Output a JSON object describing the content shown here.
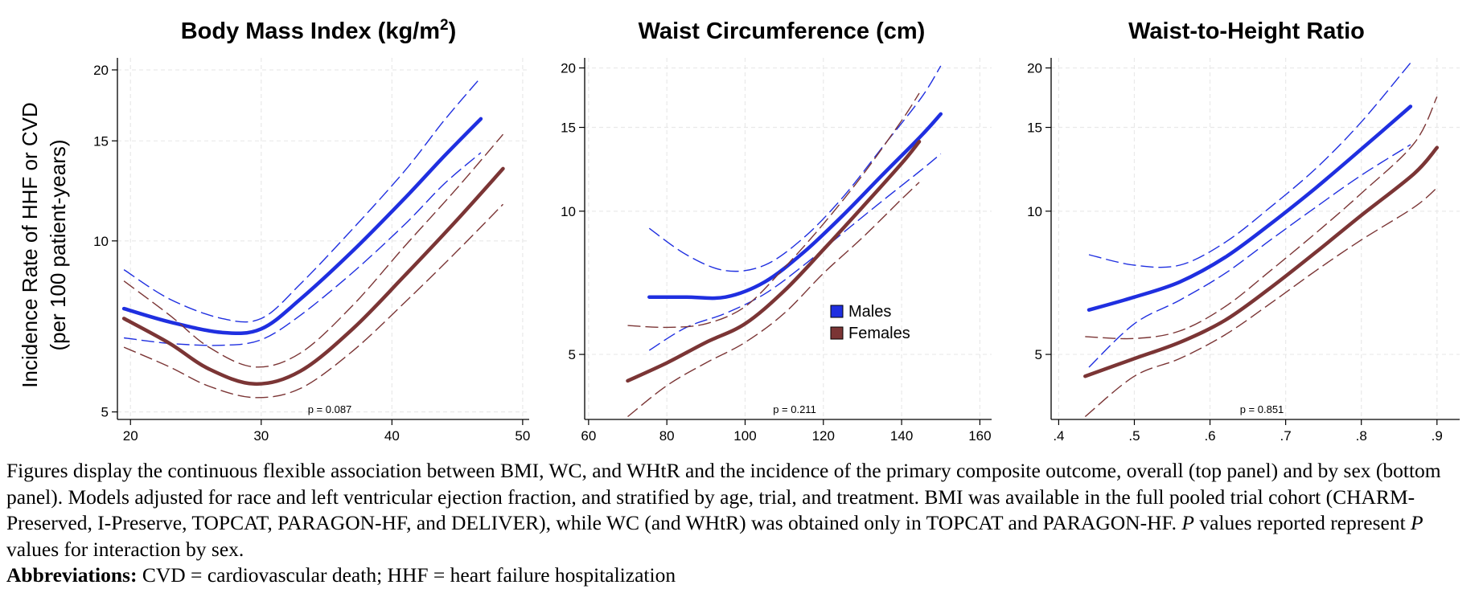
{
  "y_axis_label": [
    "Incidence Rate of HHF or CVD",
    "(per 100 patient-years)"
  ],
  "legend": [
    {
      "name": "Males",
      "color": "#1f2fe0"
    },
    {
      "name": "Females",
      "color": "#7b3535"
    }
  ],
  "chart_data": [
    {
      "type": "line",
      "title": "Body Mass Index (kg/m2)",
      "title_main": "Body Mass Index (kg/m",
      "title_sup": "2",
      "title_end": ")",
      "x_ticks": [
        "20",
        "30",
        "40",
        "50"
      ],
      "x_tick_values": [
        20,
        30,
        40,
        50
      ],
      "xlim": [
        19,
        50.5
      ],
      "y_scale": "log",
      "ylim": [
        4.85,
        21
      ],
      "y_ticks": [
        "5",
        "10",
        "15",
        "20"
      ],
      "y_tick_values": [
        5,
        10,
        15,
        20
      ],
      "p_value": "p = 0.087",
      "series": [
        {
          "name": "Males",
          "x": [
            19.5,
            23,
            27,
            30,
            33,
            37,
            41,
            44,
            46.8
          ],
          "y": [
            7.6,
            7.2,
            6.9,
            7.0,
            7.9,
            9.6,
            11.9,
            14.1,
            16.4
          ],
          "lower": [
            6.75,
            6.6,
            6.55,
            6.7,
            7.4,
            8.8,
            10.7,
            12.6,
            14.3
          ],
          "upper": [
            8.9,
            7.9,
            7.3,
            7.3,
            8.4,
            10.5,
            13.3,
            16.3,
            19.4
          ]
        },
        {
          "name": "Females",
          "x": [
            19.5,
            23,
            26,
            29.5,
            33,
            37,
            41,
            45,
            48.5
          ],
          "y": [
            7.3,
            6.6,
            5.95,
            5.6,
            5.9,
            7.0,
            8.7,
            10.9,
            13.4
          ],
          "lower": [
            6.5,
            6.0,
            5.55,
            5.3,
            5.5,
            6.4,
            7.8,
            9.6,
            11.6
          ],
          "upper": [
            8.5,
            7.4,
            6.5,
            6.0,
            6.35,
            7.7,
            9.8,
            12.4,
            15.4
          ]
        }
      ]
    },
    {
      "type": "line",
      "title": "Waist Circumference (cm)",
      "x_ticks": [
        "60",
        "80",
        "100",
        "120",
        "140",
        "160"
      ],
      "x_tick_values": [
        60,
        80,
        100,
        120,
        140,
        160
      ],
      "xlim": [
        59,
        163
      ],
      "y_scale": "log",
      "ylim": [
        3.65,
        21
      ],
      "y_ticks": [
        "5",
        "10",
        "15",
        "20"
      ],
      "y_tick_values": [
        5,
        10,
        15,
        20
      ],
      "p_value": "p = 0.211",
      "series": [
        {
          "name": "Males",
          "x": [
            75.5,
            85,
            95,
            105,
            115,
            125,
            135,
            145,
            150
          ],
          "y": [
            6.6,
            6.6,
            6.6,
            7.1,
            8.2,
            9.8,
            11.9,
            14.4,
            16.0
          ],
          "lower": [
            5.1,
            5.7,
            6.1,
            6.7,
            7.7,
            9.0,
            10.5,
            12.2,
            13.2
          ],
          "upper": [
            9.2,
            8.1,
            7.5,
            7.7,
            8.8,
            10.7,
            13.6,
            17.3,
            20.2
          ]
        },
        {
          "name": "Females",
          "x": [
            70,
            80,
            90,
            100,
            110,
            120,
            130,
            140,
            144.5
          ],
          "y": [
            4.4,
            4.8,
            5.3,
            5.8,
            6.8,
            8.3,
            10.2,
            12.6,
            14.0
          ],
          "lower": [
            3.7,
            4.3,
            4.8,
            5.3,
            6.1,
            7.4,
            8.8,
            10.6,
            11.5
          ],
          "upper": [
            5.75,
            5.7,
            5.8,
            6.3,
            7.6,
            9.4,
            11.9,
            15.5,
            17.7
          ]
        }
      ]
    },
    {
      "type": "line",
      "title": "Waist-to-Height Ratio",
      "x_ticks": [
        ".4",
        ".5",
        ".6",
        ".7",
        ".8",
        ".9"
      ],
      "x_tick_values": [
        0.4,
        0.5,
        0.6,
        0.7,
        0.8,
        0.9
      ],
      "xlim": [
        0.39,
        0.93
      ],
      "y_scale": "log",
      "ylim": [
        3.65,
        21
      ],
      "y_ticks": [
        "5",
        "10",
        "15",
        "20"
      ],
      "y_tick_values": [
        5,
        10,
        15,
        20
      ],
      "p_value": "p = 0.851",
      "series": [
        {
          "name": "Males",
          "x": [
            0.44,
            0.5,
            0.56,
            0.62,
            0.68,
            0.74,
            0.8,
            0.865
          ],
          "y": [
            6.2,
            6.6,
            7.1,
            8.0,
            9.4,
            11.2,
            13.5,
            16.6
          ],
          "lower": [
            4.7,
            5.8,
            6.5,
            7.4,
            8.7,
            10.2,
            11.9,
            13.8
          ],
          "upper": [
            8.1,
            7.7,
            7.7,
            8.6,
            10.2,
            12.3,
            15.4,
            20.5
          ]
        },
        {
          "name": "Females",
          "x": [
            0.435,
            0.5,
            0.56,
            0.62,
            0.68,
            0.74,
            0.8,
            0.87,
            0.9
          ],
          "y": [
            4.5,
            4.9,
            5.3,
            5.9,
            6.9,
            8.2,
            9.8,
            12.0,
            13.6
          ],
          "lower": [
            3.7,
            4.5,
            4.9,
            5.5,
            6.4,
            7.5,
            8.7,
            10.2,
            11.2
          ],
          "upper": [
            5.45,
            5.4,
            5.6,
            6.3,
            7.5,
            9.0,
            10.9,
            13.9,
            17.4
          ]
        }
      ]
    }
  ],
  "caption": {
    "body": "Figures display the continuous flexible association between BMI, WC, and WHtR and the incidence of the primary composite outcome, overall (top panel) and by sex (bottom panel). Models adjusted for race and left ventricular ejection fraction, and stratified by age, trial, and treatment. BMI was available in the full pooled trial cohort (CHARM-Preserved, I-Preserve, TOPCAT, PARAGON-HF, and DELIVER), while WC (and WHtR) was obtained only in TOPCAT and PARAGON-HF.",
    "p_italic": "P",
    "p_text": " values reported represent ",
    "p_italic2": "P",
    "p_text2": " values for interaction by sex.",
    "abbrev_label": "Abbreviations:",
    "abbrev_text": " CVD = cardiovascular death; HHF = heart failure hospitalization"
  }
}
